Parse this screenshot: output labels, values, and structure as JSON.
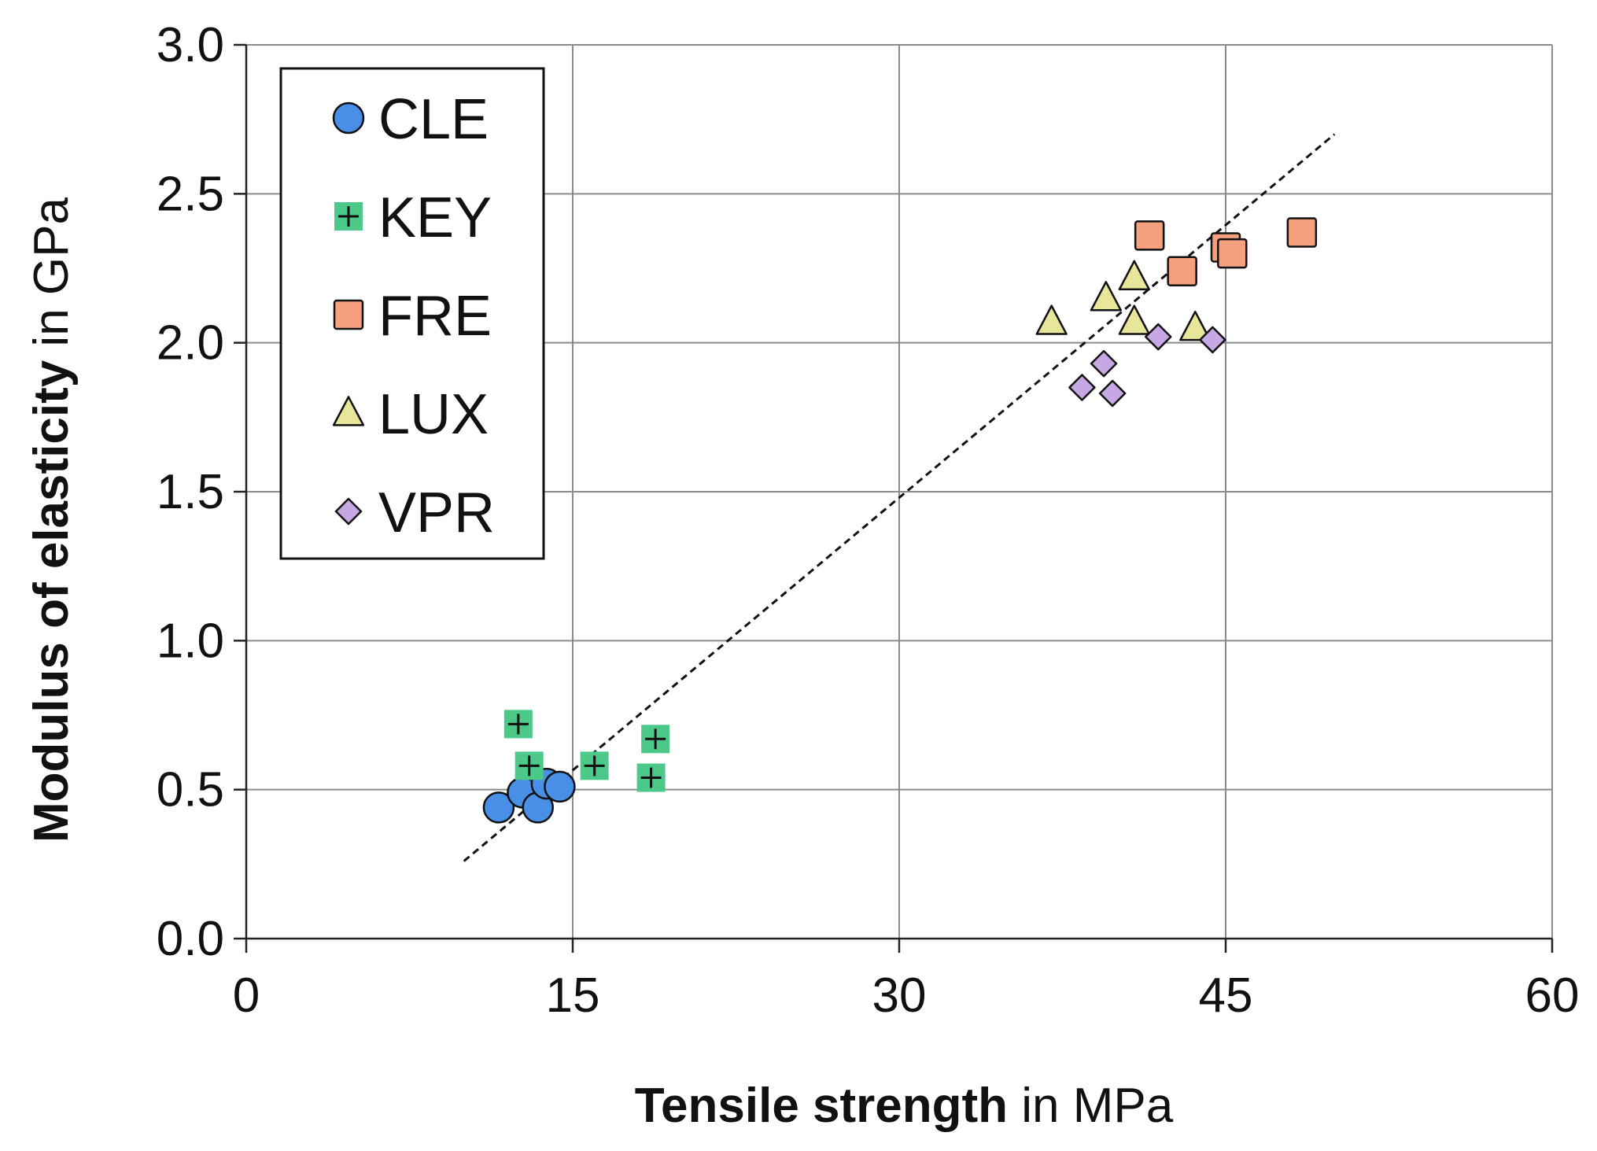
{
  "chart_data": {
    "type": "scatter",
    "xlabel_bold": "Tensile strength",
    "xlabel_rest": " in MPa",
    "ylabel_bold": "Modulus of elasticity",
    "ylabel_rest": " in GPa",
    "xlim": [
      0,
      60
    ],
    "ylim": [
      0,
      3.0
    ],
    "x_ticks": [
      "0",
      "15",
      "30",
      "45",
      "60"
    ],
    "y_ticks": [
      "0.0",
      "0.5",
      "1.0",
      "1.5",
      "2.0",
      "2.5",
      "3.0"
    ],
    "grid": true,
    "legend_position": "top-left",
    "trendline": {
      "style": "dashed",
      "x": [
        10,
        50
      ],
      "y": [
        0.26,
        2.7
      ]
    },
    "series": [
      {
        "name": "CLE",
        "marker": "circle",
        "color": "#4a8fe7",
        "points": [
          {
            "x": 11.6,
            "y": 0.44
          },
          {
            "x": 12.7,
            "y": 0.49
          },
          {
            "x": 13.4,
            "y": 0.44
          },
          {
            "x": 13.8,
            "y": 0.52
          },
          {
            "x": 14.4,
            "y": 0.51
          }
        ]
      },
      {
        "name": "KEY",
        "marker": "plus-square",
        "color": "#4cc889",
        "points": [
          {
            "x": 12.5,
            "y": 0.72
          },
          {
            "x": 13.0,
            "y": 0.58
          },
          {
            "x": 16.0,
            "y": 0.58
          },
          {
            "x": 18.6,
            "y": 0.54
          },
          {
            "x": 18.8,
            "y": 0.67
          }
        ]
      },
      {
        "name": "FRE",
        "marker": "square",
        "color": "#f4a07f",
        "points": [
          {
            "x": 41.5,
            "y": 2.36
          },
          {
            "x": 43.0,
            "y": 2.24
          },
          {
            "x": 45.0,
            "y": 2.32
          },
          {
            "x": 45.3,
            "y": 2.3
          },
          {
            "x": 48.5,
            "y": 2.37
          }
        ]
      },
      {
        "name": "LUX",
        "marker": "triangle",
        "color": "#e8e69a",
        "points": [
          {
            "x": 37.0,
            "y": 2.07
          },
          {
            "x": 39.5,
            "y": 2.15
          },
          {
            "x": 40.8,
            "y": 2.22
          },
          {
            "x": 40.8,
            "y": 2.07
          },
          {
            "x": 43.6,
            "y": 2.05
          }
        ]
      },
      {
        "name": "VPR",
        "marker": "diamond",
        "color": "#c7a8e5",
        "points": [
          {
            "x": 38.4,
            "y": 1.85
          },
          {
            "x": 39.4,
            "y": 1.93
          },
          {
            "x": 39.8,
            "y": 1.83
          },
          {
            "x": 41.9,
            "y": 2.02
          },
          {
            "x": 44.4,
            "y": 2.01
          }
        ]
      }
    ]
  }
}
